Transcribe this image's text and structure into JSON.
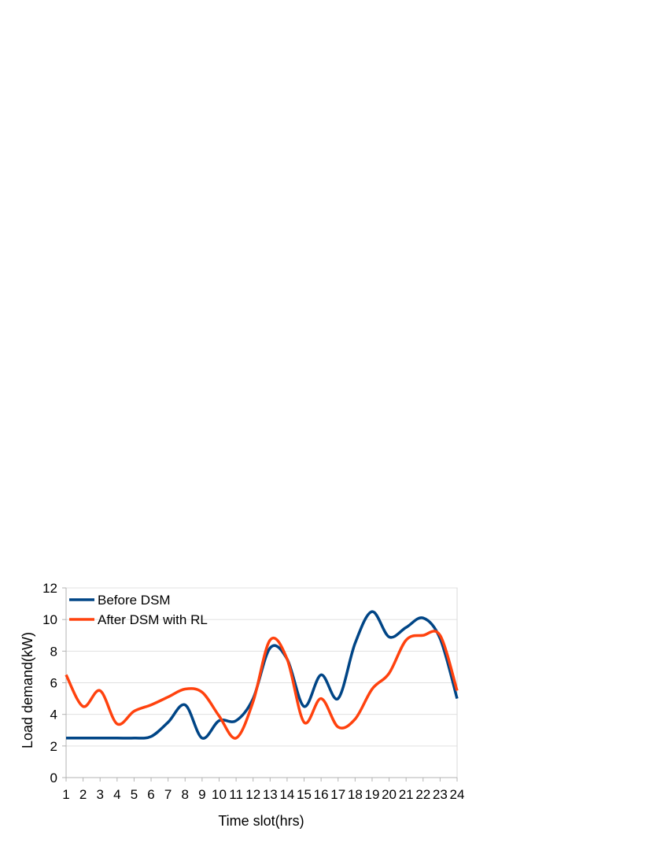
{
  "chart_data": {
    "type": "line",
    "xlabel": "Time slot(hrs)",
    "ylabel": "Load demand(kW)",
    "categories": [
      "1",
      "2",
      "3",
      "4",
      "5",
      "6",
      "7",
      "8",
      "9",
      "10",
      "11",
      "12",
      "13",
      "14",
      "15",
      "16",
      "17",
      "18",
      "19",
      "20",
      "21",
      "22",
      "23",
      "24"
    ],
    "ylim": [
      0,
      12
    ],
    "yticks": [
      "0",
      "2",
      "4",
      "6",
      "8",
      "10",
      "12"
    ],
    "grid": "horizontal",
    "legend": "top-left",
    "series": [
      {
        "name": "Before DSM",
        "color": "#004586",
        "values": [
          2.5,
          2.5,
          2.5,
          2.5,
          2.5,
          2.6,
          3.5,
          4.6,
          2.5,
          3.6,
          3.6,
          5.0,
          8.2,
          7.5,
          4.5,
          6.5,
          5.0,
          8.5,
          10.5,
          8.9,
          9.5,
          10.1,
          8.8,
          5.0
        ]
      },
      {
        "name": "After DSM with RL",
        "color": "#ff420e",
        "values": [
          6.5,
          4.5,
          5.5,
          3.4,
          4.2,
          4.6,
          5.1,
          5.6,
          5.4,
          3.9,
          2.5,
          4.8,
          8.7,
          7.5,
          3.5,
          5.0,
          3.2,
          3.7,
          5.6,
          6.6,
          8.7,
          9.0,
          9.0,
          5.5
        ]
      }
    ]
  }
}
